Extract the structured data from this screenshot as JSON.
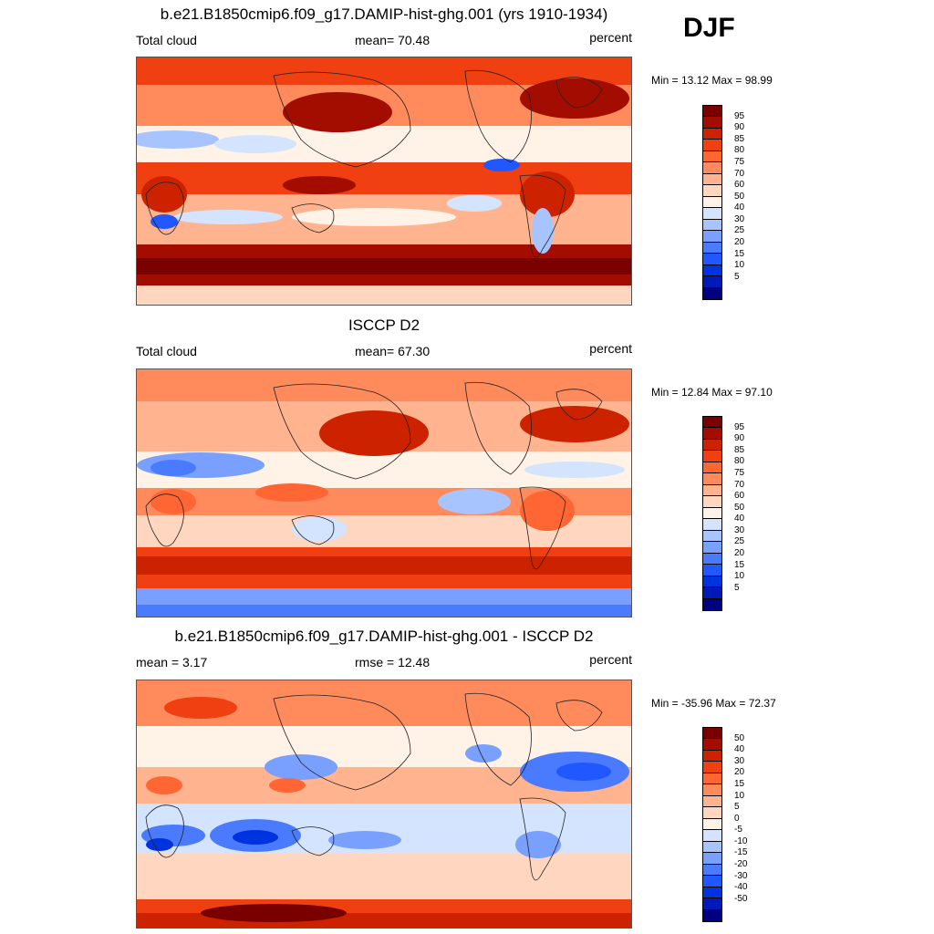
{
  "season": "DJF",
  "palettes": {
    "abs": [
      "#000080",
      "#0019b8",
      "#0033e0",
      "#2157ff",
      "#4a7bff",
      "#7aa0ff",
      "#a8c4ff",
      "#d4e4ff",
      "#fff2e6",
      "#ffd6bf",
      "#ffb48f",
      "#ff8a5c",
      "#ff6633",
      "#f03f10",
      "#cc2200",
      "#a30d00",
      "#7a0000"
    ],
    "diff": [
      "#000080",
      "#0019b8",
      "#0033e0",
      "#2157ff",
      "#4a7bff",
      "#7aa0ff",
      "#a8c4ff",
      "#d4e4ff",
      "#fff2e6",
      "#ffd6bf",
      "#ffb48f",
      "#ff8a5c",
      "#ff6633",
      "#f03f10",
      "#cc2200",
      "#a30d00",
      "#7a0000"
    ]
  },
  "panels": [
    {
      "title": "b.e21.B1850cmip6.f09_g17.DAMIP-hist-ghg.001 (yrs 1910-1934)",
      "left_label": "Total cloud",
      "center_label": "mean=  70.48",
      "right_label": "percent",
      "minmax": "Min =  13.12 Max =  98.99",
      "colorbar_labels": [
        "95",
        "90",
        "85",
        "80",
        "75",
        "70",
        "60",
        "50",
        "40",
        "30",
        "25",
        "20",
        "15",
        "10",
        "5"
      ],
      "palette": "abs"
    },
    {
      "title": "ISCCP D2",
      "left_label": "Total cloud",
      "center_label": "mean=  67.30",
      "right_label": "percent",
      "minmax": "Min =  12.84 Max =  97.10",
      "colorbar_labels": [
        "95",
        "90",
        "85",
        "80",
        "75",
        "70",
        "60",
        "50",
        "40",
        "30",
        "25",
        "20",
        "15",
        "10",
        "5"
      ],
      "palette": "abs"
    },
    {
      "title": "b.e21.B1850cmip6.f09_g17.DAMIP-hist-ghg.001 - ISCCP D2",
      "left_label": "mean =   3.17",
      "center_label": "rmse =  12.48",
      "right_label": "percent",
      "minmax": "Min = -35.96 Max =  72.37",
      "colorbar_labels": [
        "50",
        "40",
        "30",
        "20",
        "15",
        "10",
        "5",
        "0",
        "-5",
        "-10",
        "-15",
        "-20",
        "-30",
        "-40",
        "-50"
      ],
      "palette": "diff"
    }
  ]
}
